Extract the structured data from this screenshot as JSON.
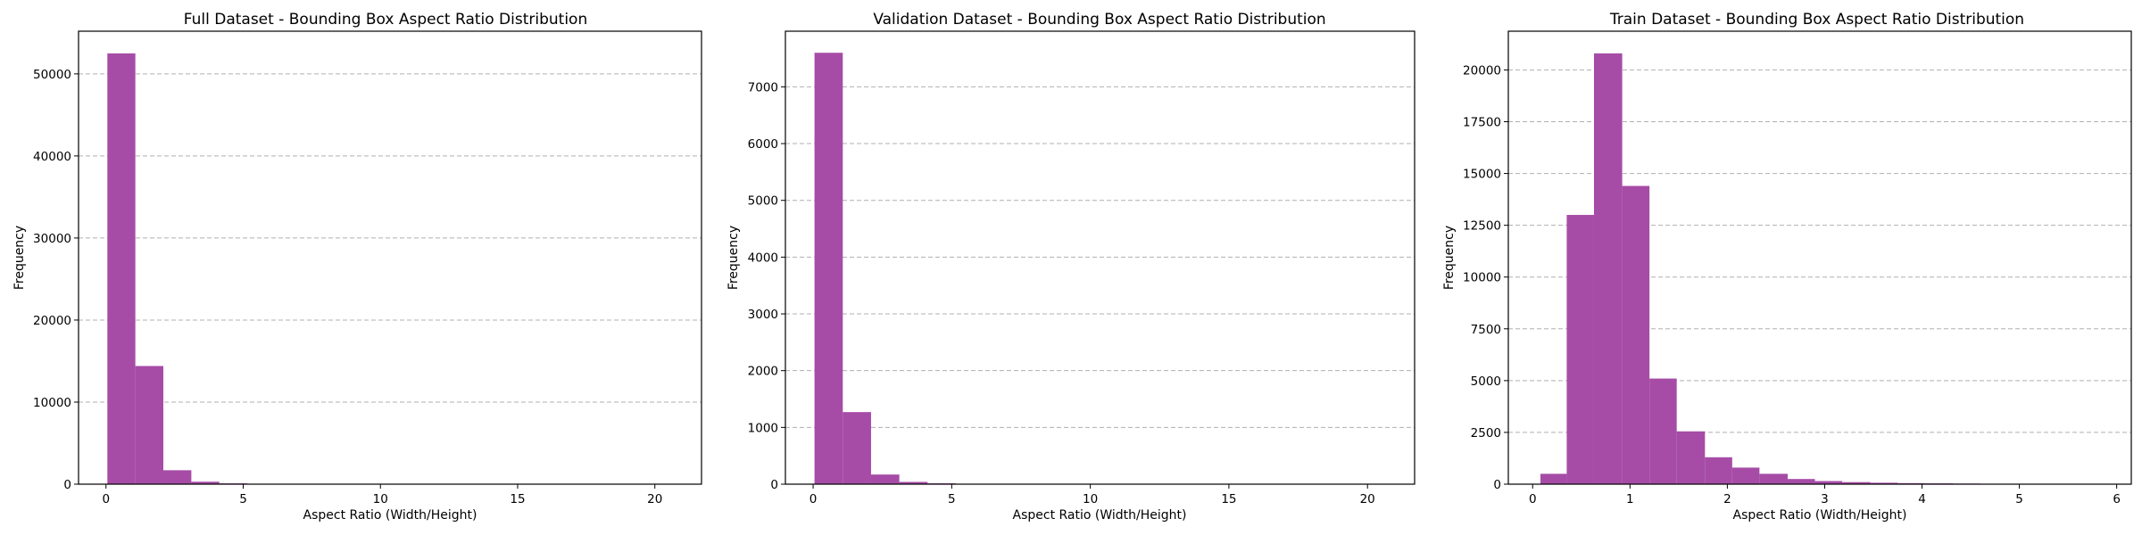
{
  "chart_data": [
    {
      "type": "bar",
      "title": "Full Dataset - Bounding Box Aspect Ratio Distribution",
      "xlabel": "Aspect Ratio (Width/Height)",
      "ylabel": "Frequency",
      "xlim": [
        -1,
        21.7
      ],
      "ylim": [
        0,
        55200
      ],
      "xticks": [
        0,
        5,
        10,
        15,
        20
      ],
      "yticks": [
        0,
        10000,
        20000,
        30000,
        40000,
        50000
      ],
      "grid": "y-dashed",
      "bins": [
        {
          "x0": 0.05,
          "x1": 1.07,
          "value": 52500
        },
        {
          "x0": 1.07,
          "x1": 2.09,
          "value": 14400
        },
        {
          "x0": 2.09,
          "x1": 3.11,
          "value": 1700
        },
        {
          "x0": 3.11,
          "x1": 4.13,
          "value": 300
        },
        {
          "x0": 4.13,
          "x1": 5.15,
          "value": 100
        },
        {
          "x0": 5.15,
          "x1": 6.17,
          "value": 30
        }
      ]
    },
    {
      "type": "bar",
      "title": "Validation Dataset - Bounding Box Aspect Ratio Distribution",
      "xlabel": "Aspect Ratio (Width/Height)",
      "ylabel": "Frequency",
      "xlim": [
        -1,
        21.7
      ],
      "ylim": [
        0,
        7980
      ],
      "xticks": [
        0,
        5,
        10,
        15,
        20
      ],
      "yticks": [
        0,
        1000,
        2000,
        3000,
        4000,
        5000,
        6000,
        7000
      ],
      "grid": "y-dashed",
      "bins": [
        {
          "x0": 0.05,
          "x1": 1.07,
          "value": 7600
        },
        {
          "x0": 1.07,
          "x1": 2.09,
          "value": 1270
        },
        {
          "x0": 2.09,
          "x1": 3.11,
          "value": 170
        },
        {
          "x0": 3.11,
          "x1": 4.13,
          "value": 40
        },
        {
          "x0": 4.13,
          "x1": 5.15,
          "value": 15
        }
      ]
    },
    {
      "type": "bar",
      "title": "Train Dataset - Bounding Box Aspect Ratio Distribution",
      "xlabel": "Aspect Ratio (Width/Height)",
      "ylabel": "Frequency",
      "xlim": [
        -0.25,
        6.15
      ],
      "ylim": [
        0,
        21870
      ],
      "xticks": [
        0,
        1,
        2,
        3,
        4,
        5,
        6
      ],
      "yticks": [
        0,
        2500,
        5000,
        7500,
        10000,
        12500,
        15000,
        17500,
        20000
      ],
      "grid": "y-dashed",
      "bins": [
        {
          "x0": 0.08,
          "x1": 0.35,
          "value": 500
        },
        {
          "x0": 0.35,
          "x1": 0.63,
          "value": 13000
        },
        {
          "x0": 0.63,
          "x1": 0.92,
          "value": 20800
        },
        {
          "x0": 0.92,
          "x1": 1.2,
          "value": 14400
        },
        {
          "x0": 1.2,
          "x1": 1.48,
          "value": 5100
        },
        {
          "x0": 1.48,
          "x1": 1.77,
          "value": 2550
        },
        {
          "x0": 1.77,
          "x1": 2.05,
          "value": 1300
        },
        {
          "x0": 2.05,
          "x1": 2.33,
          "value": 800
        },
        {
          "x0": 2.33,
          "x1": 2.62,
          "value": 500
        },
        {
          "x0": 2.62,
          "x1": 2.9,
          "value": 250
        },
        {
          "x0": 2.9,
          "x1": 3.18,
          "value": 150
        },
        {
          "x0": 3.18,
          "x1": 3.47,
          "value": 100
        },
        {
          "x0": 3.47,
          "x1": 3.75,
          "value": 70
        },
        {
          "x0": 3.75,
          "x1": 4.03,
          "value": 50
        },
        {
          "x0": 4.03,
          "x1": 4.32,
          "value": 40
        },
        {
          "x0": 4.32,
          "x1": 4.6,
          "value": 30
        }
      ]
    }
  ]
}
